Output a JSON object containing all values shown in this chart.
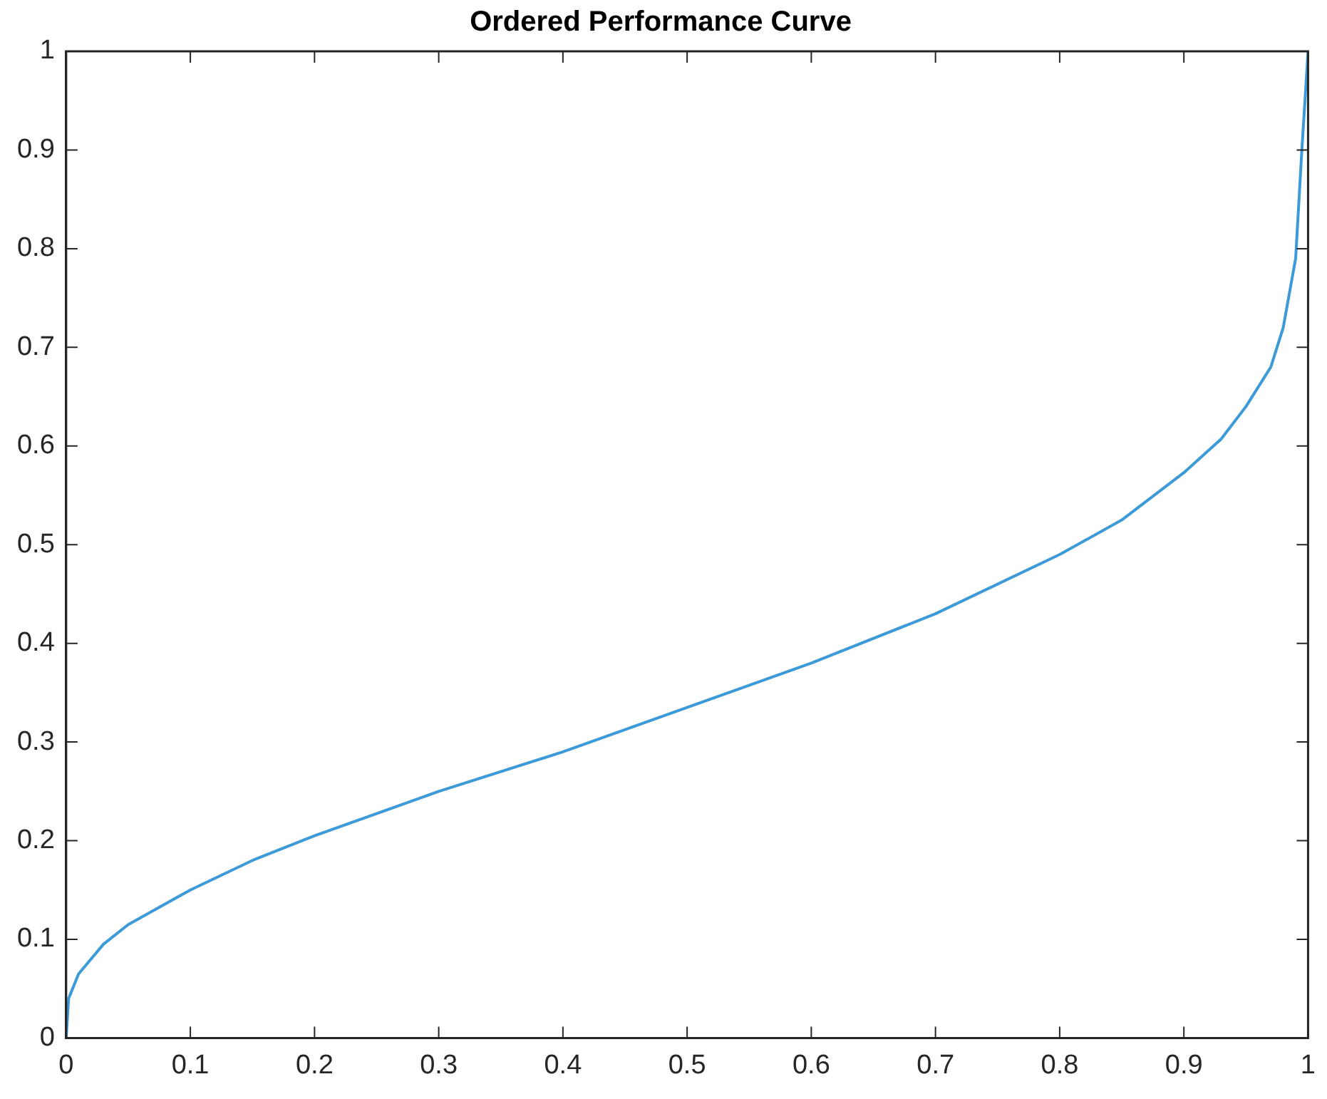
{
  "chart_data": {
    "type": "line",
    "title": "Ordered Performance Curve",
    "x": [
      0,
      0.002,
      0.01,
      0.03,
      0.05,
      0.1,
      0.15,
      0.2,
      0.3,
      0.4,
      0.5,
      0.6,
      0.7,
      0.8,
      0.85,
      0.9,
      0.93,
      0.95,
      0.97,
      0.98,
      0.99,
      0.995,
      1
    ],
    "series": [
      {
        "color": "#3d9ad8",
        "values": [
          0,
          0.04,
          0.065,
          0.095,
          0.115,
          0.15,
          0.18,
          0.205,
          0.25,
          0.29,
          0.335,
          0.38,
          0.43,
          0.49,
          0.525,
          0.573,
          0.607,
          0.64,
          0.68,
          0.72,
          0.79,
          0.9,
          1
        ]
      }
    ],
    "xlim": [
      0,
      1
    ],
    "ylim": [
      0,
      1
    ],
    "xticks": [
      0,
      0.1,
      0.2,
      0.3,
      0.4,
      0.5,
      0.6,
      0.7,
      0.8,
      0.9,
      1
    ],
    "yticks": [
      0,
      0.1,
      0.2,
      0.3,
      0.4,
      0.5,
      0.6,
      0.7,
      0.8,
      0.9,
      1
    ],
    "grid": false,
    "legend": false,
    "marker": "none",
    "line_style": "solid"
  }
}
